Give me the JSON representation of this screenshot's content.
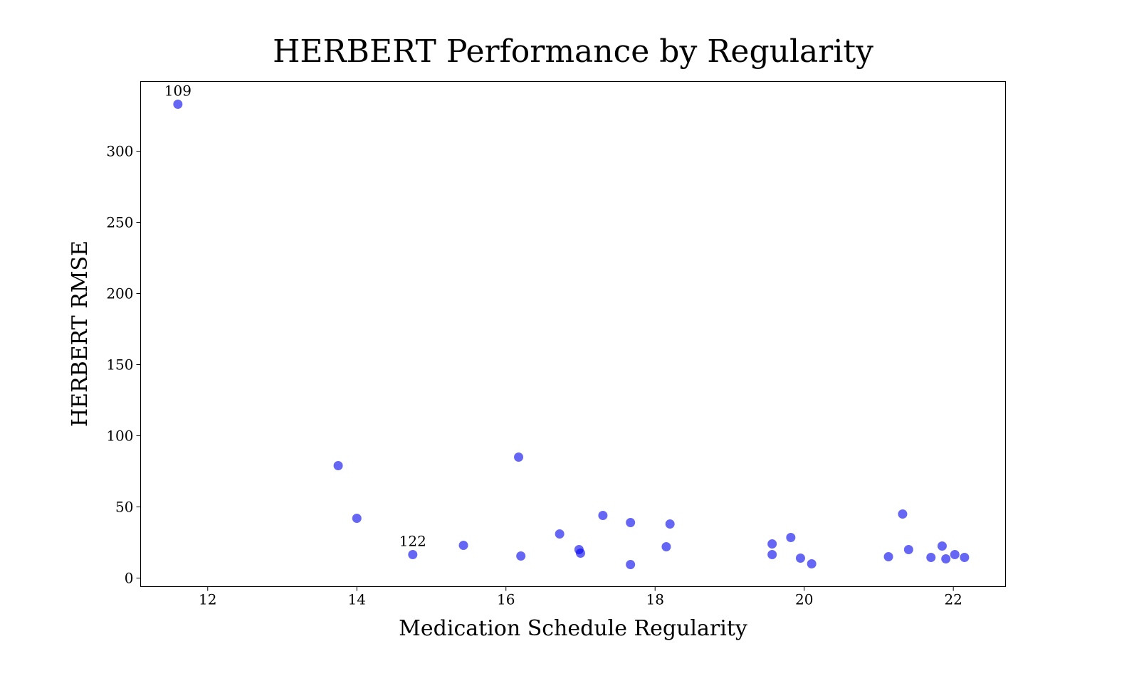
{
  "chart_data": {
    "type": "scatter",
    "title": "HERBERT Performance by Regularity",
    "xlabel": "Medication Schedule Regularity",
    "ylabel": "HERBERT RMSE",
    "xlim": [
      11.1,
      22.7
    ],
    "ylim": [
      -6,
      349
    ],
    "xticks": [
      12,
      14,
      16,
      18,
      20,
      22
    ],
    "yticks": [
      0,
      50,
      100,
      150,
      200,
      250,
      300
    ],
    "grid": false,
    "marker_color": "#0000ee",
    "marker_opacity": 0.6,
    "points": [
      {
        "x": 11.6,
        "y": 333,
        "label": "109"
      },
      {
        "x": 13.75,
        "y": 79
      },
      {
        "x": 14.0,
        "y": 42
      },
      {
        "x": 14.75,
        "y": 16.5,
        "label": "122"
      },
      {
        "x": 15.43,
        "y": 23
      },
      {
        "x": 16.17,
        "y": 85
      },
      {
        "x": 16.2,
        "y": 15.5
      },
      {
        "x": 16.72,
        "y": 31
      },
      {
        "x": 16.98,
        "y": 20
      },
      {
        "x": 17.0,
        "y": 17.5
      },
      {
        "x": 17.3,
        "y": 44
      },
      {
        "x": 17.67,
        "y": 39
      },
      {
        "x": 17.67,
        "y": 9.5
      },
      {
        "x": 18.15,
        "y": 22
      },
      {
        "x": 18.2,
        "y": 38
      },
      {
        "x": 19.57,
        "y": 24
      },
      {
        "x": 19.57,
        "y": 16.5
      },
      {
        "x": 19.82,
        "y": 28.5
      },
      {
        "x": 19.95,
        "y": 14
      },
      {
        "x": 20.1,
        "y": 10
      },
      {
        "x": 21.13,
        "y": 15
      },
      {
        "x": 21.32,
        "y": 45
      },
      {
        "x": 21.4,
        "y": 20
      },
      {
        "x": 21.7,
        "y": 14.5
      },
      {
        "x": 21.85,
        "y": 22.5
      },
      {
        "x": 21.9,
        "y": 13.5
      },
      {
        "x": 22.02,
        "y": 16.5
      },
      {
        "x": 22.15,
        "y": 14.5
      }
    ]
  }
}
